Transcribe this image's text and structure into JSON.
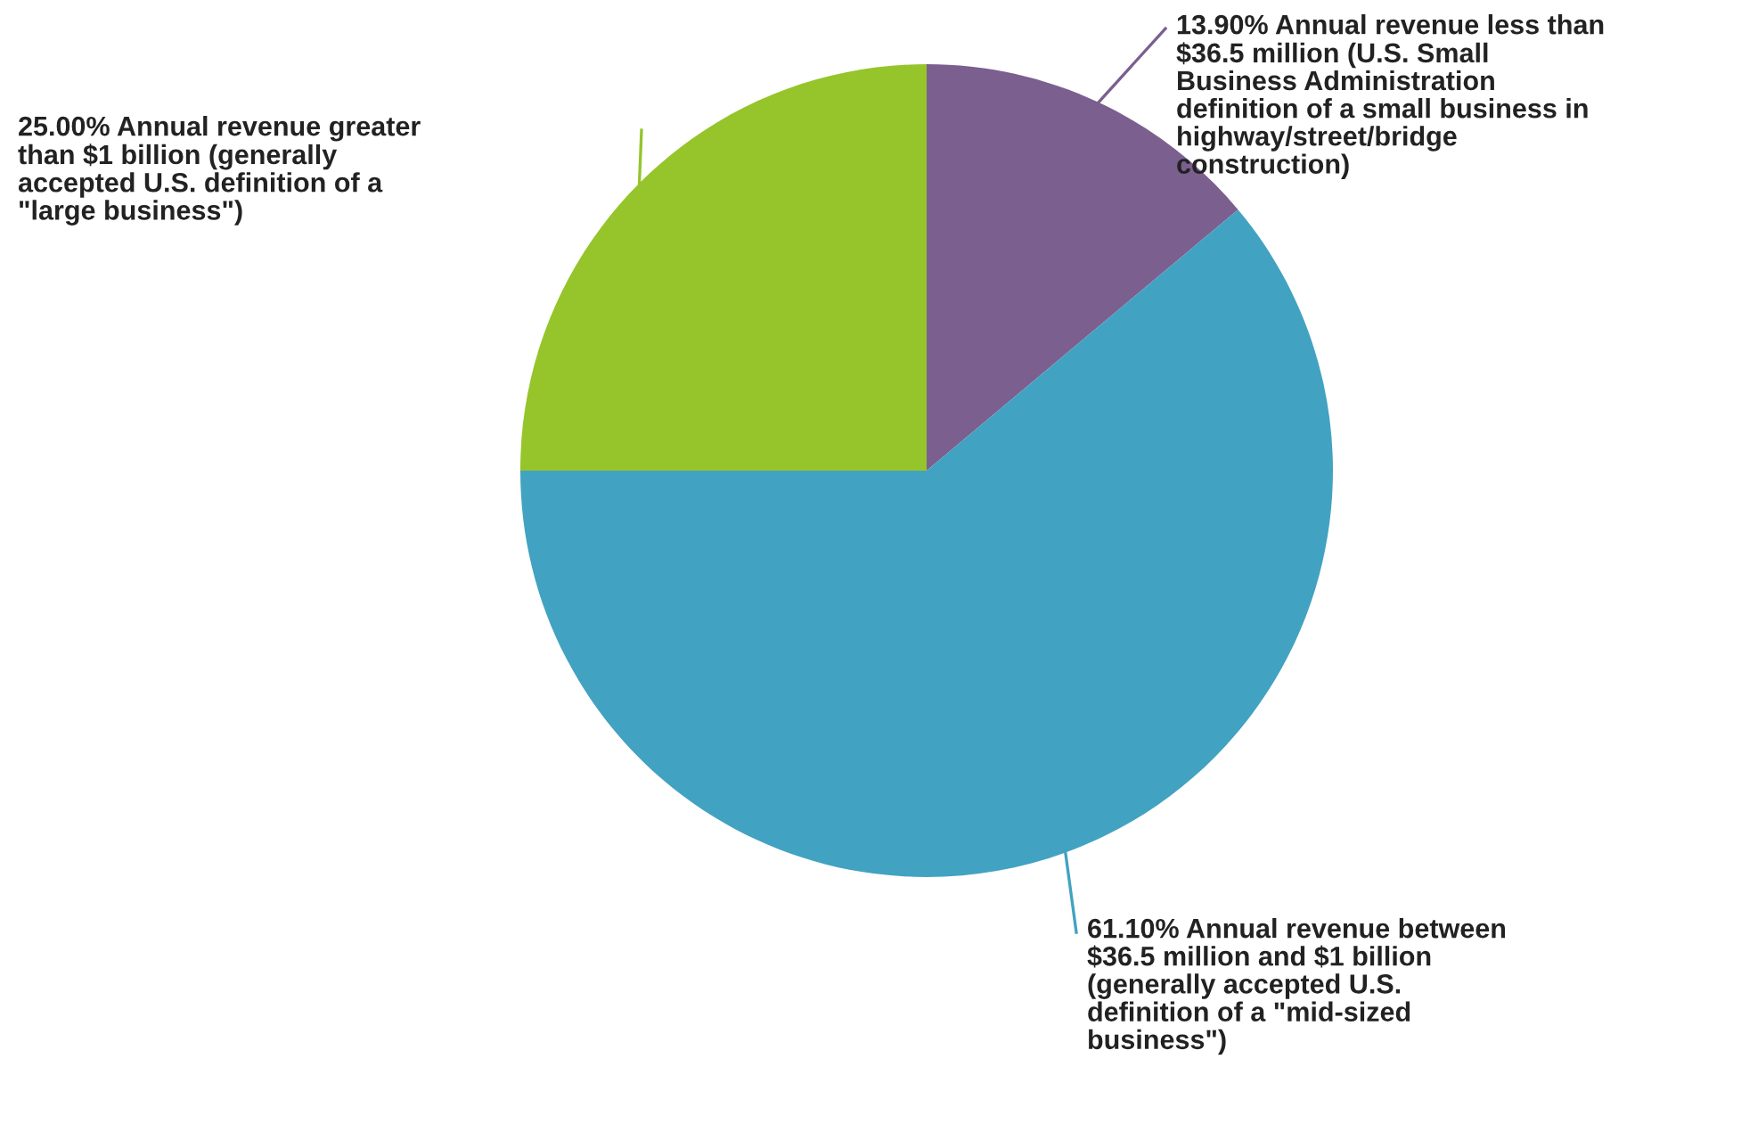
{
  "chart_data": {
    "type": "pie",
    "categories": [
      "Annual revenue less than\n$36.5 million (U.S. Small\nBusiness Administration\ndefinition of a small business in\nhighway/street/bridge\nconstruction)",
      "Annual revenue between\n$36.5 million and $1 billion\n(generally accepted U.S.\ndefinition of a \"mid-sized\nbusiness\")",
      "Annual revenue greater\nthan $1 billion (generally\naccepted U.S. definition of a\n\"large business\")"
    ],
    "values": [
      13.9,
      61.1,
      25.0
    ],
    "value_labels": [
      "13.90%",
      "61.10%",
      "25.00%"
    ],
    "colors": [
      "#7b5f8f",
      "#42a2c1",
      "#95c52a"
    ]
  }
}
